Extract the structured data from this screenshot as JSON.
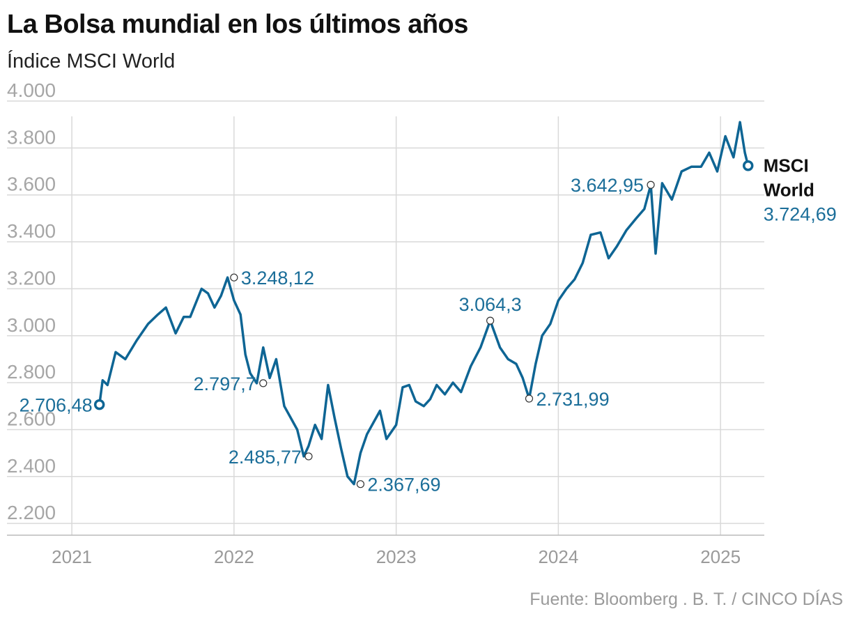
{
  "title": "La Bolsa mundial en los últimos años",
  "subtitle": "Índice MSCI World",
  "source": "Fuente: Bloomberg . B. T. / CINCO DÍAS",
  "colors": {
    "line": "#0e6594",
    "annotation": "#1b6e99",
    "grid": "#d9d9d9",
    "tick": "#a6a6a6"
  },
  "chart_data": {
    "type": "line",
    "title": "La Bolsa mundial en los últimos años",
    "subtitle": "Índice MSCI World",
    "xlabel": "",
    "ylabel": "",
    "xlim": [
      2020.6,
      2025.27
    ],
    "ylim": [
      2150,
      4000
    ],
    "y_ticks": [
      2200,
      2400,
      2600,
      2800,
      3000,
      3200,
      3400,
      3600,
      3800,
      4000
    ],
    "y_tick_labels": [
      "2.200",
      "2.400",
      "2.600",
      "2.800",
      "3.000",
      "3.200",
      "3.400",
      "3.600",
      "3.800",
      "4.000"
    ],
    "x_ticks": [
      2021,
      2022,
      2023,
      2024,
      2025
    ],
    "x_tick_labels": [
      "2021",
      "2022",
      "2023",
      "2024",
      "2025"
    ],
    "series": [
      {
        "name": "MSCI World",
        "x": [
          2021.17,
          2021.19,
          2021.22,
          2021.27,
          2021.33,
          2021.4,
          2021.47,
          2021.53,
          2021.58,
          2021.64,
          2021.69,
          2021.73,
          2021.8,
          2021.84,
          2021.88,
          2021.92,
          2021.96,
          2022.0,
          2022.04,
          2022.07,
          2022.1,
          2022.14,
          2022.18,
          2022.22,
          2022.26,
          2022.31,
          2022.35,
          2022.39,
          2022.43,
          2022.46,
          2022.5,
          2022.54,
          2022.58,
          2022.62,
          2022.66,
          2022.7,
          2022.74,
          2022.78,
          2022.82,
          2022.86,
          2022.9,
          2022.94,
          2023.0,
          2023.04,
          2023.08,
          2023.12,
          2023.17,
          2023.21,
          2023.25,
          2023.3,
          2023.35,
          2023.4,
          2023.46,
          2023.52,
          2023.58,
          2023.64,
          2023.69,
          2023.74,
          2023.78,
          2023.82,
          2023.86,
          2023.9,
          2023.95,
          2024.0,
          2024.05,
          2024.1,
          2024.15,
          2024.2,
          2024.26,
          2024.31,
          2024.36,
          2024.42,
          2024.48,
          2024.53,
          2024.57,
          2024.6,
          2024.64,
          2024.7,
          2024.76,
          2024.82,
          2024.88,
          2024.93,
          2024.98,
          2025.03,
          2025.08,
          2025.12,
          2025.15,
          2025.17
        ],
        "y": [
          2706.48,
          2810,
          2790,
          2930,
          2900,
          2980,
          3050,
          3090,
          3120,
          3010,
          3080,
          3080,
          3200,
          3180,
          3120,
          3170,
          3248.12,
          3150,
          3090,
          2920,
          2840,
          2797.7,
          2950,
          2820,
          2900,
          2700,
          2650,
          2600,
          2485.77,
          2530,
          2620,
          2560,
          2790,
          2650,
          2520,
          2400,
          2367.69,
          2500,
          2580,
          2630,
          2680,
          2560,
          2620,
          2780,
          2790,
          2720,
          2700,
          2730,
          2790,
          2750,
          2800,
          2760,
          2870,
          2950,
          3064.3,
          2950,
          2900,
          2880,
          2820,
          2731.99,
          2880,
          3000,
          3050,
          3150,
          3200,
          3240,
          3310,
          3430,
          3440,
          3330,
          3380,
          3450,
          3500,
          3540,
          3642.95,
          3350,
          3650,
          3580,
          3700,
          3720,
          3720,
          3780,
          3700,
          3850,
          3760,
          3910,
          3780,
          3724.69
        ]
      }
    ],
    "annotations": [
      {
        "label": "2.706,48",
        "x": 2021.17,
        "y": 2706.48,
        "side": "left"
      },
      {
        "label": "3.248,12",
        "x": 2022.0,
        "y": 3248.12,
        "side": "right"
      },
      {
        "label": "2.797,7",
        "x": 2022.18,
        "y": 2797.7,
        "side": "left"
      },
      {
        "label": "2.485,77",
        "x": 2022.46,
        "y": 2485.77,
        "side": "left"
      },
      {
        "label": "2.367,69",
        "x": 2022.78,
        "y": 2367.69,
        "side": "right"
      },
      {
        "label": "3.064,3",
        "x": 2023.58,
        "y": 3064.3,
        "side": "above"
      },
      {
        "label": "2.731,99",
        "x": 2023.82,
        "y": 2731.99,
        "side": "right"
      },
      {
        "label": "3.642,95",
        "x": 2024.57,
        "y": 3642.95,
        "side": "left"
      }
    ],
    "end_label": {
      "name_line1": "MSCI",
      "name_line2": "World",
      "value": "3.724,69",
      "x": 2025.17,
      "y": 3724.69
    }
  }
}
